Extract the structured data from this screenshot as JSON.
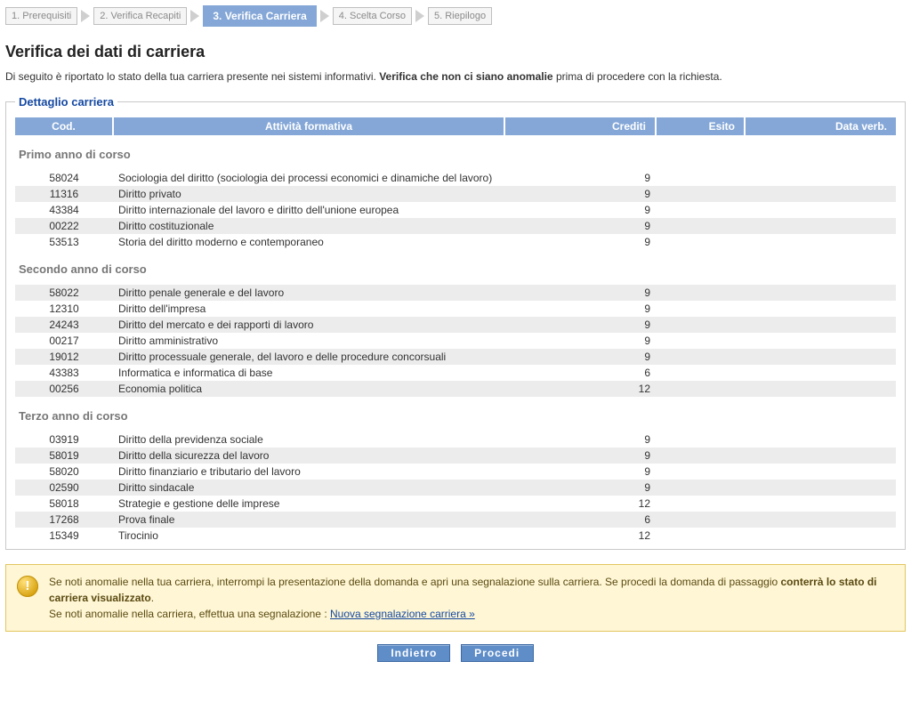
{
  "wizard": {
    "steps": [
      {
        "label": "1. Prerequisiti",
        "active": false
      },
      {
        "label": "2. Verifica Recapiti",
        "active": false
      },
      {
        "label": "3. Verifica Carriera",
        "active": true
      },
      {
        "label": "4. Scelta Corso",
        "active": false
      },
      {
        "label": "5. Riepilogo",
        "active": false
      }
    ]
  },
  "title": "Verifica dei dati di carriera",
  "intro_pre": "Di seguito è riportato lo stato della tua carriera presente nei sistemi informativi. ",
  "intro_strong": "Verifica che non ci siano anomalie",
  "intro_post": " prima di procedere con la richiesta.",
  "fieldset_legend": "Dettaglio carriera",
  "columns": {
    "cod": "Cod.",
    "activity": "Attività formativa",
    "credits": "Crediti",
    "esito": "Esito",
    "dataverb": "Data verb."
  },
  "year_groups": [
    {
      "label": "Primo anno di corso",
      "rows": [
        {
          "cod": "58024",
          "name": "Sociologia del diritto (sociologia dei processi economici e dinamiche del lavoro)",
          "credits": "9",
          "alt": false
        },
        {
          "cod": "11316",
          "name": "Diritto privato",
          "credits": "9",
          "alt": true
        },
        {
          "cod": "43384",
          "name": "Diritto internazionale del lavoro e diritto dell'unione europea",
          "credits": "9",
          "alt": false
        },
        {
          "cod": "00222",
          "name": "Diritto costituzionale",
          "credits": "9",
          "alt": true
        },
        {
          "cod": "53513",
          "name": "Storia del diritto moderno e contemporaneo",
          "credits": "9",
          "alt": false
        }
      ]
    },
    {
      "label": "Secondo anno di corso",
      "rows": [
        {
          "cod": "58022",
          "name": "Diritto penale generale e del lavoro",
          "credits": "9",
          "alt": true
        },
        {
          "cod": "12310",
          "name": "Diritto dell'impresa",
          "credits": "9",
          "alt": false
        },
        {
          "cod": "24243",
          "name": "Diritto del mercato e dei rapporti di lavoro",
          "credits": "9",
          "alt": true
        },
        {
          "cod": "00217",
          "name": "Diritto amministrativo",
          "credits": "9",
          "alt": false
        },
        {
          "cod": "19012",
          "name": "Diritto processuale generale, del lavoro e delle procedure concorsuali",
          "credits": "9",
          "alt": true
        },
        {
          "cod": "43383",
          "name": "Informatica e informatica di base",
          "credits": "6",
          "alt": false
        },
        {
          "cod": "00256",
          "name": "Economia politica",
          "credits": "12",
          "alt": true
        }
      ]
    },
    {
      "label": "Terzo anno di corso",
      "rows": [
        {
          "cod": "03919",
          "name": "Diritto della previdenza sociale",
          "credits": "9",
          "alt": false
        },
        {
          "cod": "58019",
          "name": "Diritto della sicurezza del lavoro",
          "credits": "9",
          "alt": true
        },
        {
          "cod": "58020",
          "name": "Diritto finanziario e tributario del lavoro",
          "credits": "9",
          "alt": false
        },
        {
          "cod": "02590",
          "name": "Diritto sindacale",
          "credits": "9",
          "alt": true
        },
        {
          "cod": "58018",
          "name": "Strategie e gestione delle imprese",
          "credits": "12",
          "alt": false
        },
        {
          "cod": "17268",
          "name": "Prova finale",
          "credits": "6",
          "alt": true
        },
        {
          "cod": "15349",
          "name": "Tirocinio",
          "credits": "12",
          "alt": false
        }
      ]
    }
  ],
  "warning": {
    "line1_pre": "Se noti anomalie nella tua carriera, interrompi la presentazione della domanda e apri una segnalazione sulla carriera. Se procedi la domanda di passaggio ",
    "line1_strong": "conterrà lo stato di carriera visualizzato",
    "line1_post": ".",
    "line2": "Se noti anomalie nella carriera, effettua una segnalazione : ",
    "link": "Nuova segnalazione carriera »"
  },
  "buttons": {
    "back": "Indietro",
    "next": "Procedi"
  },
  "colors": {
    "header_blue": "#84a7d7",
    "link_blue": "#1549a3",
    "button_blue": "#5e8dc8",
    "row_alt": "#ececec",
    "warn_bg": "#fef6d4",
    "warn_border": "#e2c65f"
  }
}
